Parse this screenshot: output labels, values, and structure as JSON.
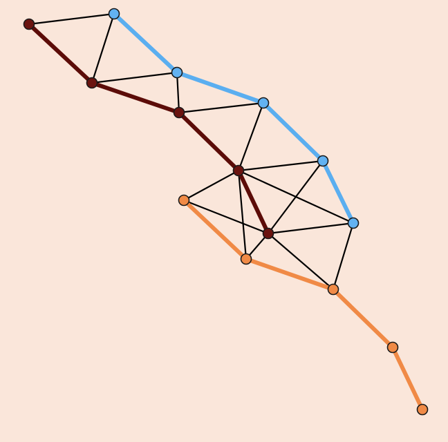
{
  "graph": {
    "colors": {
      "background": "#fae6da",
      "thin_edge": "#000000",
      "node_outline": "#1a1a1a"
    },
    "paths": [
      {
        "id": "blue",
        "color": "#5aaef0",
        "nodes": [
          "b1",
          "b2",
          "b3",
          "b4",
          "b5"
        ]
      },
      {
        "id": "dark-red",
        "color": "#5c0c08",
        "nodes": [
          "d1",
          "d2",
          "d3",
          "d4",
          "d5"
        ]
      },
      {
        "id": "orange",
        "color": "#f08a46",
        "nodes": [
          "o1",
          "o2",
          "o3",
          "o4",
          "o5"
        ]
      }
    ],
    "nodes": [
      {
        "id": "d1",
        "group": "dark-red",
        "fill": "#6b1410"
      },
      {
        "id": "d2",
        "group": "dark-red",
        "fill": "#6b1410"
      },
      {
        "id": "d3",
        "group": "dark-red",
        "fill": "#6b1410"
      },
      {
        "id": "d4",
        "group": "dark-red",
        "fill": "#6b1410"
      },
      {
        "id": "d5",
        "group": "dark-red",
        "fill": "#6b1410"
      },
      {
        "id": "b1",
        "group": "blue",
        "fill": "#62b2f2"
      },
      {
        "id": "b2",
        "group": "blue",
        "fill": "#62b2f2"
      },
      {
        "id": "b3",
        "group": "blue",
        "fill": "#62b2f2"
      },
      {
        "id": "b4",
        "group": "blue",
        "fill": "#62b2f2"
      },
      {
        "id": "b5",
        "group": "blue",
        "fill": "#62b2f2"
      },
      {
        "id": "o1",
        "group": "orange",
        "fill": "#f08a46"
      },
      {
        "id": "o2",
        "group": "orange",
        "fill": "#f08a46"
      },
      {
        "id": "o3",
        "group": "orange",
        "fill": "#f08a46"
      },
      {
        "id": "o4",
        "group": "orange",
        "fill": "#f08a46"
      },
      {
        "id": "o5",
        "group": "orange",
        "fill": "#f08a46"
      }
    ],
    "edges": [
      [
        "d1",
        "b1"
      ],
      [
        "b1",
        "d2"
      ],
      [
        "d2",
        "b2"
      ],
      [
        "b2",
        "d3"
      ],
      [
        "d3",
        "b3"
      ],
      [
        "b3",
        "d4"
      ],
      [
        "d4",
        "b4"
      ],
      [
        "d4",
        "b5"
      ],
      [
        "d4",
        "o1"
      ],
      [
        "d4",
        "o2"
      ],
      [
        "d4",
        "d5"
      ],
      [
        "b4",
        "d5"
      ],
      [
        "b5",
        "d5"
      ],
      [
        "o1",
        "d5"
      ],
      [
        "d5",
        "o2"
      ],
      [
        "d5",
        "o3"
      ],
      [
        "b5",
        "o3"
      ]
    ]
  }
}
